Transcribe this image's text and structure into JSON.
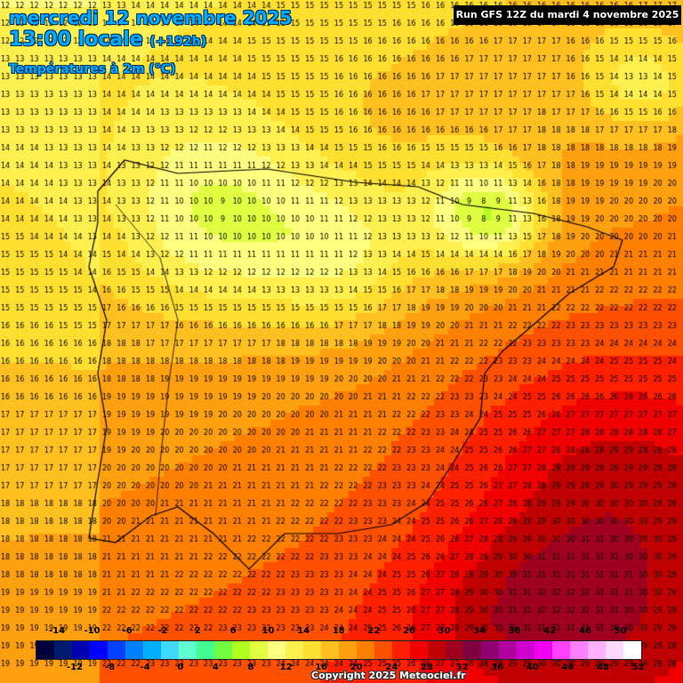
{
  "header": {
    "date_title": "mercredi 12 novembre 2025",
    "local_time": "13:00 locale",
    "lead_time": "(+192h)",
    "parameter": "Températures à 2m (°C)",
    "run_info": "Run GFS 12Z du mardi 4 novembre 2025",
    "copyright": "Copyright 2025 Meteociel.fr"
  },
  "legend": {
    "top_labels": [
      "-14",
      "-10",
      "-6",
      "-2",
      "2",
      "6",
      "10",
      "14",
      "18",
      "22",
      "26",
      "30",
      "34",
      "38",
      "42",
      "46",
      "50"
    ],
    "bottom_labels": [
      "-12",
      "-8",
      "-4",
      "0",
      "4",
      "8",
      "12",
      "16",
      "20",
      "24",
      "28",
      "32",
      "36",
      "40",
      "44",
      "48",
      "52"
    ],
    "colors": [
      "#00003c",
      "#001a6e",
      "#0000b0",
      "#0000ff",
      "#0040ff",
      "#0080ff",
      "#00b0ff",
      "#40d8ff",
      "#60ffd0",
      "#40ff90",
      "#70ff40",
      "#b0ff20",
      "#e0ff40",
      "#ffff80",
      "#fff050",
      "#ffe030",
      "#ffc020",
      "#ffa010",
      "#ff8000",
      "#ff5000",
      "#ff2000",
      "#f00000",
      "#c00000",
      "#a00020",
      "#800040",
      "#900070",
      "#b000a0",
      "#d000d0",
      "#f000f0",
      "#ff40ff",
      "#ff80ff",
      "#ffb0ff",
      "#ffd8ff",
      "#ffffff"
    ]
  }
}
